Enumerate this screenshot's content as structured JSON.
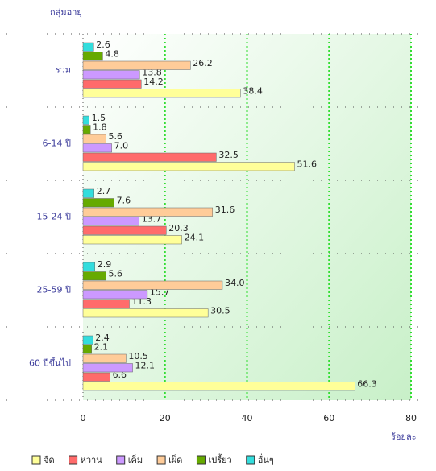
{
  "chart_data": {
    "type": "hbar",
    "y_axis_label": "กลุ่มอายุ",
    "x_axis_label": "ร้อยละ",
    "categories": [
      "รวม",
      "6-14 ปี",
      "15-24 ปี",
      "25-59 ปี",
      "60 ปีขึ้นไป"
    ],
    "series": [
      {
        "name": "จืด",
        "color": "#ffff99",
        "values": [
          38.4,
          51.6,
          24.1,
          30.5,
          66.3
        ],
        "value_labels": [
          "38.4",
          "51.6",
          "24.1",
          "30.5",
          "66.3"
        ]
      },
      {
        "name": "หวาน",
        "color": "#ff6b6b",
        "values": [
          14.2,
          32.5,
          20.3,
          11.3,
          6.6
        ],
        "value_labels": [
          "14.2",
          "32.5",
          "20.3",
          "11.3",
          "6.6"
        ]
      },
      {
        "name": "เค็ม",
        "color": "#cc99ff",
        "values": [
          13.8,
          7.0,
          13.7,
          15.7,
          12.1
        ],
        "value_labels": [
          "13.8",
          "7.0",
          "13.7",
          "15.7",
          "12.1"
        ]
      },
      {
        "name": "เผ็ด",
        "color": "#ffcc99",
        "values": [
          26.2,
          5.6,
          31.6,
          34.0,
          10.5
        ],
        "value_labels": [
          "26.2",
          "5.6",
          "31.6",
          "34.0",
          "10.5"
        ]
      },
      {
        "name": "เปรี้ยว",
        "color": "#66aa00",
        "values": [
          4.8,
          1.8,
          7.6,
          5.6,
          2.1
        ],
        "value_labels": [
          "4.8",
          "1.8",
          "7.6",
          "5.6",
          "2.1"
        ]
      },
      {
        "name": "อื่นๆ",
        "color": "#33dddd",
        "values": [
          2.6,
          1.5,
          2.7,
          2.9,
          2.4
        ],
        "value_labels": [
          "2.6",
          "1.5",
          "2.7",
          "2.9",
          "2.4"
        ]
      }
    ],
    "xlim": [
      0,
      80
    ],
    "xticks": [
      0,
      20,
      40,
      60,
      80
    ],
    "grid": true,
    "legend": "bottom"
  }
}
